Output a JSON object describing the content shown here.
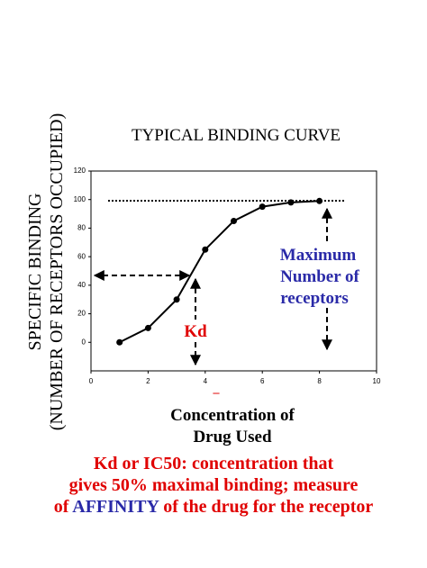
{
  "chart_data": {
    "type": "line",
    "title": "TYPICAL  BINDING  CURVE",
    "y_label": [
      "SPECIFIC BINDING",
      "(NUMBER OF RECEPTORS OCCUPIED)"
    ],
    "x_label": [
      "Concentration of",
      "Drug Used"
    ],
    "x": [
      1,
      2,
      3,
      4,
      5,
      6,
      7,
      8
    ],
    "series": [
      {
        "color": "#000000",
        "values": [
          0,
          10,
          30,
          65,
          85,
          95,
          98,
          99
        ]
      }
    ],
    "xlim": [
      0,
      10
    ],
    "xticks": [
      0,
      2,
      4,
      6,
      8,
      10
    ],
    "ylim": [
      -20,
      120
    ],
    "yticks": [
      0,
      20,
      40,
      60,
      80,
      100,
      120
    ],
    "annotations": {
      "max": [
        "Maximum",
        "Number of",
        "receptors"
      ],
      "kd": "Kd",
      "dash": "–"
    }
  },
  "footer": {
    "lines": [
      "Kd or IC50: concentration that",
      "gives 50% maximal binding; measure"
    ],
    "line3": [
      "of ",
      "AFFINITY",
      " of the drug for the receptor"
    ]
  }
}
